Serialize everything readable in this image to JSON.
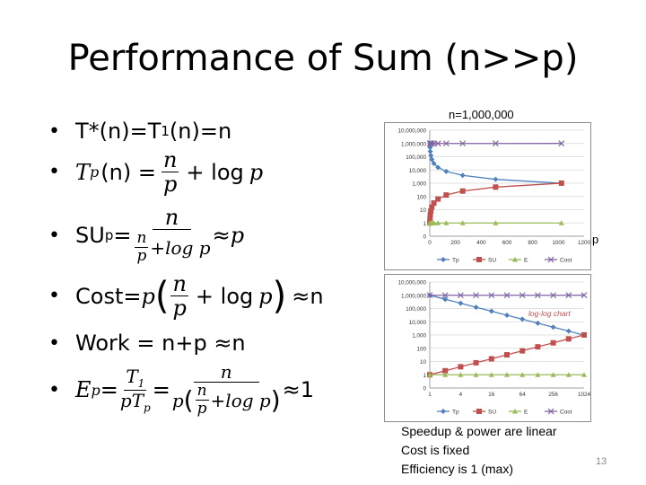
{
  "slide": {
    "title": "Performance of Sum (n>>p)",
    "page_number": "13"
  },
  "bullets": {
    "b1": {
      "text": "T*(n)=T",
      "sub": "1",
      "rest": "(n)=n"
    },
    "b2": {
      "T": "T",
      "sub": "p",
      "arg": "(n) =",
      "n": "n",
      "p": "p",
      "plus": "+ log",
      "var": "p"
    },
    "b3": {
      "lead": "SU",
      "sub": "p",
      "eq": "=",
      "num": "n",
      "den_n": "n",
      "den_p": "p",
      "den_rest": "+log p",
      "approx": "≈",
      "var": "p"
    },
    "b4": {
      "lead": "Cost=",
      "p": "p",
      "num": "n",
      "den": "p",
      "plus": "+ log",
      "var": "p",
      "tail": "≈n"
    },
    "b5": {
      "text": "Work = n+p ≈n"
    },
    "b6": {
      "E": "E",
      "sub": "p",
      "eq1": "=",
      "num1": "T",
      "num1_sub": "1",
      "den1": "pT",
      "den1_sub": "p",
      "eq2": "=",
      "num2": "n",
      "den2_p": "p",
      "den2_n": "n",
      "den2_p2": "p",
      "den2_rest": "+log p",
      "tail": "≈1"
    }
  },
  "chart_top": {
    "caption": "n=1,000,000",
    "side_label": "p"
  },
  "chart_bottom": {
    "annotation": "log-log chart"
  },
  "chart_data": [
    {
      "type": "line",
      "title": "n=1,000,000",
      "xlabel": "p",
      "ylabel": "",
      "y_scale": "log",
      "xlim": [
        0,
        1200
      ],
      "ylim": [
        0,
        10000000
      ],
      "x_ticks": [
        "0",
        "200",
        "400",
        "600",
        "800",
        "1000",
        "1200"
      ],
      "y_ticks": [
        "0",
        "1",
        "10",
        "100",
        "1,000",
        "10,000",
        "100,000",
        "1,000,000",
        "10,000,000"
      ],
      "x": [
        1,
        2,
        4,
        8,
        16,
        32,
        64,
        128,
        256,
        512,
        1024
      ],
      "series": [
        {
          "name": "Tp",
          "color": "#4f81bd",
          "marker": "diamond",
          "values": [
            1000000,
            500001,
            250002,
            125003,
            62504,
            31255,
            15631,
            7820,
            3914,
            1962,
            987
          ]
        },
        {
          "name": "SU",
          "color": "#c0504d",
          "marker": "square",
          "values": [
            1,
            2,
            4,
            8,
            16,
            32,
            64,
            128,
            256,
            510,
            1013
          ]
        },
        {
          "name": "E",
          "color": "#9bbb59",
          "marker": "triangle",
          "values": [
            1,
            1,
            1,
            1,
            1,
            1,
            1,
            1,
            1,
            1,
            1
          ]
        },
        {
          "name": "Cost",
          "color": "#8064a2",
          "marker": "x",
          "values": [
            1000000,
            1000002,
            1000008,
            1000024,
            1000064,
            1000160,
            1000384,
            1000896,
            1002048,
            1004608,
            1010240
          ]
        }
      ],
      "legend": "bottom"
    },
    {
      "type": "line",
      "title": "",
      "annotation": "log-log chart",
      "y_scale": "log",
      "x_scale": "log",
      "x_ticks": [
        "1",
        "4",
        "16",
        "64",
        "256",
        "1024"
      ],
      "y_ticks": [
        "0",
        "1",
        "10",
        "100",
        "1,000",
        "10,000",
        "100,000",
        "1,000,000",
        "10,000,000"
      ],
      "x": [
        1,
        2,
        4,
        8,
        16,
        32,
        64,
        128,
        256,
        512,
        1024
      ],
      "series": [
        {
          "name": "Tp",
          "color": "#4f81bd",
          "marker": "diamond",
          "values": [
            1000000,
            500001,
            250002,
            125003,
            62504,
            31255,
            15631,
            7820,
            3914,
            1962,
            987
          ]
        },
        {
          "name": "SU",
          "color": "#c0504d",
          "marker": "square",
          "values": [
            1,
            2,
            4,
            8,
            16,
            32,
            64,
            128,
            256,
            510,
            1013
          ]
        },
        {
          "name": "E",
          "color": "#9bbb59",
          "marker": "triangle",
          "values": [
            1,
            1,
            1,
            1,
            1,
            1,
            1,
            1,
            1,
            1,
            1
          ]
        },
        {
          "name": "Cost",
          "color": "#8064a2",
          "marker": "x",
          "values": [
            1000000,
            1000002,
            1000008,
            1000024,
            1000064,
            1000160,
            1000384,
            1000896,
            1002048,
            1004608,
            1010240
          ]
        }
      ],
      "legend": "bottom"
    }
  ],
  "notes": {
    "line1": "Speedup & power are linear",
    "line2": "Cost is fixed",
    "line3": "Efficiency is 1 (max)"
  }
}
